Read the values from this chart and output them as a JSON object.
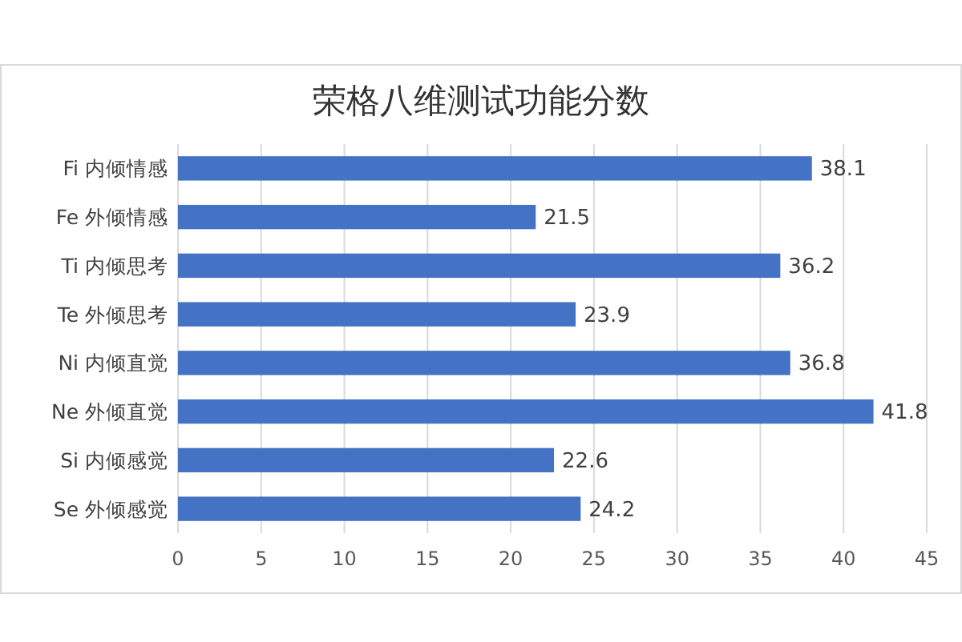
{
  "chart_data": {
    "type": "bar",
    "orientation": "horizontal",
    "title": "荣格八维测试功能分数",
    "categories": [
      "Fi  内倾情感",
      "Fe  外倾情感",
      "Ti  内倾思考",
      "Te  外倾思考",
      "Ni  内倾直觉",
      "Ne  外倾直觉",
      "Si  内倾感觉",
      "Se  外倾感觉"
    ],
    "values": [
      38.1,
      21.5,
      36.2,
      23.9,
      36.8,
      41.8,
      22.6,
      24.2
    ],
    "color": "#4472c4",
    "xlim": [
      0,
      45
    ],
    "xticks": [
      0,
      5,
      10,
      15,
      20,
      25,
      30,
      35,
      40,
      45
    ],
    "grid": "x",
    "data_labels": true
  }
}
